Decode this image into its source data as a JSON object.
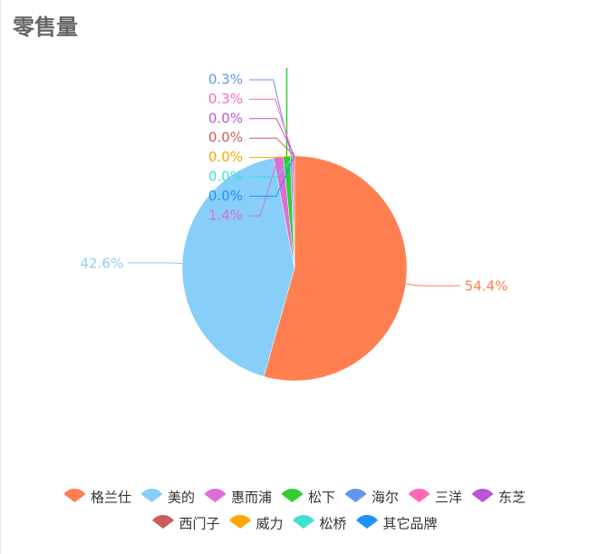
{
  "chart_data": {
    "type": "pie",
    "title": "零售量",
    "categories": [
      "格兰仕",
      "美的",
      "惠而浦",
      "松下",
      "海尔",
      "三洋",
      "东芝",
      "西门子",
      "威力",
      "松桥",
      "其它品牌"
    ],
    "values": [
      54.4,
      42.6,
      1.4,
      1.0,
      0.3,
      0.3,
      0,
      0,
      0,
      0,
      0
    ],
    "value_labels": [
      "54.4%",
      "42.6%",
      "1.4%",
      null,
      "0.3%",
      "0.3%",
      "0.0%",
      "0.0%",
      "0.0%",
      "0.0%",
      "0.0%"
    ],
    "colors": [
      "#ff7f50",
      "#87cefa",
      "#da70d6",
      "#32cd32",
      "#6495ed",
      "#ff69b4",
      "#ba55d3",
      "#cd5c5c",
      "#ffa500",
      "#40e0d0",
      "#1e90ff"
    ]
  }
}
